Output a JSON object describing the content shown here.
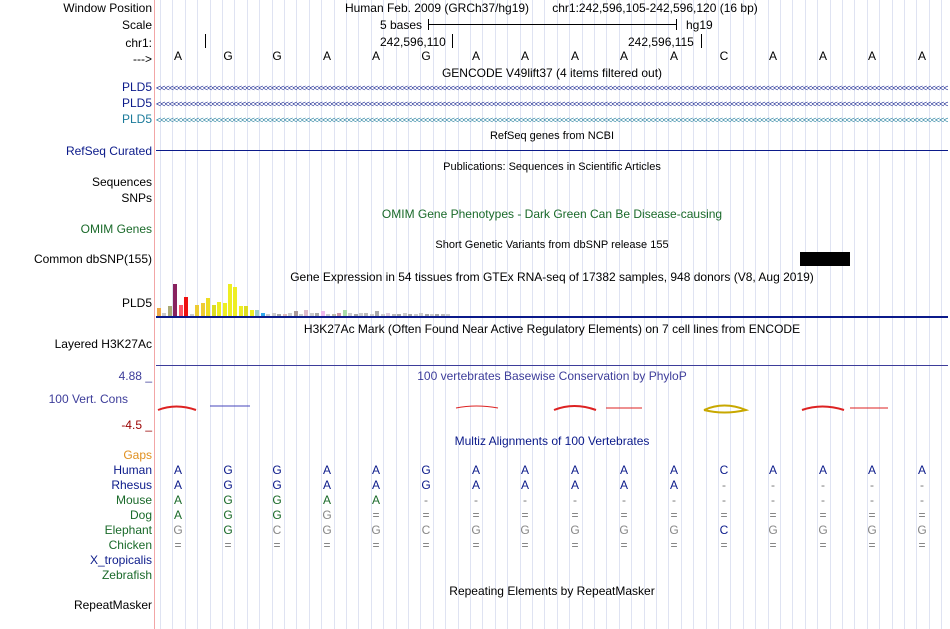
{
  "header": {
    "window_position_label": "Window Position",
    "scale_label": "Scale",
    "chrom_label": "chr1:",
    "strand_label": "--->",
    "assembly": "Human Feb. 2009 (GRCh37/hg19)",
    "position": "chr1:242,596,105-242,596,120 (16 bp)",
    "scale_text": "5 bases",
    "db_text": "hg19",
    "coord1": "242,596,110",
    "coord2": "242,596,115"
  },
  "sequence": [
    "A",
    "G",
    "G",
    "A",
    "A",
    "G",
    "A",
    "A",
    "A",
    "A",
    "A",
    "C",
    "A",
    "A",
    "A",
    "A"
  ],
  "gencode": {
    "title": "GENCODE V49lift37 (4 items filtered out)",
    "tracks": [
      {
        "label": "PLD5",
        "color": "#0b1a8a"
      },
      {
        "label": "PLD5",
        "color": "#0b1a8a"
      },
      {
        "label": "PLD5",
        "color": "#1a7a9a"
      }
    ]
  },
  "refseq": {
    "title": "RefSeq genes from NCBI",
    "label": "RefSeq Curated"
  },
  "publications": {
    "title": "Publications: Sequences in Scientific Articles",
    "label1": "Sequences",
    "label2": "SNPs"
  },
  "omim": {
    "title": "OMIM Gene Phenotypes - Dark Green Can Be Disease-causing",
    "label": "OMIM Genes"
  },
  "dbsnp": {
    "title": "Short Genetic Variants from dbSNP release 155",
    "label": "Common dbSNP(155)"
  },
  "gtex": {
    "title": "Gene Expression in 54 tissues from GTEx RNA-seq of 17382 samples, 948 donors (V8, Aug 2019)",
    "label": "PLD5",
    "values": [
      0.25,
      0.1,
      0.3,
      1.0,
      0.35,
      0.6,
      0.05,
      0.35,
      0.4,
      0.55,
      0.35,
      0.45,
      0.4,
      1.0,
      0.9,
      0.3,
      0.3,
      0.2,
      0.2,
      0.1,
      0.05,
      0.1,
      0.05,
      0.05,
      0.1,
      0.15,
      0.05,
      0.2,
      0.1,
      0.1,
      0.15,
      0.05,
      0.05,
      0.1,
      0.2,
      0.1,
      0.05,
      0.1,
      0.1,
      0.05,
      0.15,
      0.05,
      0.1,
      0.05,
      0.05,
      0.1,
      0.05,
      0.05,
      0.1,
      0.05,
      0.05,
      0.05,
      0.05,
      0.05
    ],
    "colors": [
      "#eeaa44",
      "#cccccc",
      "#aaaa77",
      "#88225f",
      "#ff5566",
      "#ee1111",
      "#cccccc",
      "#eecc33",
      "#eecc33",
      "#eedd22",
      "#dddd22",
      "#eeee22",
      "#eeee22",
      "#eeee22",
      "#eeee22",
      "#eeee22",
      "#dddd22",
      "#eeee22",
      "#99cccc",
      "#33aaee",
      "#cccccc",
      "#cccccc",
      "#aaaaaa",
      "#ddbbbb",
      "#cccccc",
      "#aa9999",
      "#cccccc",
      "#ddbbcc",
      "#cccccc",
      "#aaaaaa",
      "#eebbee",
      "#cccccc",
      "#bbbbaa",
      "#cc99aa",
      "#aaddaa",
      "#cccccc",
      "#aaaaaa",
      "#cccccc",
      "#bbbbbb",
      "#cccccc",
      "#aaaaaa",
      "#cccccc",
      "#ddccdd",
      "#bbbbbb",
      "#aaaaaa",
      "#cccccc",
      "#aaaaaa",
      "#cccccc",
      "#cccccc",
      "#aaaaaa",
      "#cccccc",
      "#aaaaaa",
      "#bbbbbb",
      "#cccccc"
    ]
  },
  "h3k27ac": {
    "title": "H3K27Ac Mark (Often Found Near Active Regulatory Elements) on 7 cell lines from ENCODE",
    "label": "Layered H3K27Ac"
  },
  "phylop": {
    "title": "100 vertebrates Basewise Conservation by PhyloP",
    "label": "100 Vert. Cons",
    "max": "4.88 _",
    "min": "-4.5 _"
  },
  "multiz": {
    "title": "Multiz Alignments of 100 Vertebrates",
    "gaps_label": "Gaps",
    "species": [
      {
        "name": "Human",
        "color": "#0b1a8a",
        "seq": [
          "A",
          "G",
          "G",
          "A",
          "A",
          "G",
          "A",
          "A",
          "A",
          "A",
          "A",
          "C",
          "A",
          "A",
          "A",
          "A"
        ]
      },
      {
        "name": "Rhesus",
        "color": "#0b1a8a",
        "seq": [
          "A",
          "G",
          "G",
          "A",
          "A",
          "G",
          "A",
          "A",
          "A",
          "A",
          "A",
          "-",
          "-",
          "-",
          "-",
          "-"
        ]
      },
      {
        "name": "Mouse",
        "color": "#1a6a2a",
        "seq": [
          "A",
          "G",
          "G",
          "A",
          "A",
          "-",
          "-",
          "-",
          "-",
          "-",
          "-",
          "-",
          "-",
          "-",
          "-",
          "-"
        ]
      },
      {
        "name": "Dog",
        "color": "#1a6a2a",
        "seq": [
          "A",
          "G",
          "G",
          "G",
          "=",
          "=",
          "=",
          "=",
          "=",
          "=",
          "=",
          "=",
          "=",
          "=",
          "=",
          "="
        ]
      },
      {
        "name": "Elephant",
        "color": "#1a6a2a",
        "seq": [
          "G",
          "G",
          "C",
          "G",
          "G",
          "C",
          "G",
          "G",
          "G",
          "G",
          "G",
          "C",
          "G",
          "G",
          "G",
          "G"
        ]
      },
      {
        "name": "Chicken",
        "color": "#1a6a2a",
        "seq": [
          "=",
          "=",
          "=",
          "=",
          "=",
          "=",
          "=",
          "=",
          "=",
          "=",
          "=",
          "=",
          "=",
          "=",
          "=",
          "="
        ]
      },
      {
        "name": "X_tropicalis",
        "color": "#0b1a8a",
        "seq": []
      },
      {
        "name": "Zebrafish",
        "color": "#1a6a2a",
        "seq": []
      }
    ]
  },
  "repeatmasker": {
    "title": "Repeating Elements by RepeatMasker",
    "label": "RepeatMasker"
  },
  "colors": {
    "label_blue": "#0b1a8a",
    "omim_green": "#1a6a2a",
    "phylop_blue": "#3d3d9a",
    "phylop_red": "#990000",
    "gaps_orange": "#e09020",
    "grid": "#dfe3f2",
    "separator": "#f2a6a6"
  }
}
